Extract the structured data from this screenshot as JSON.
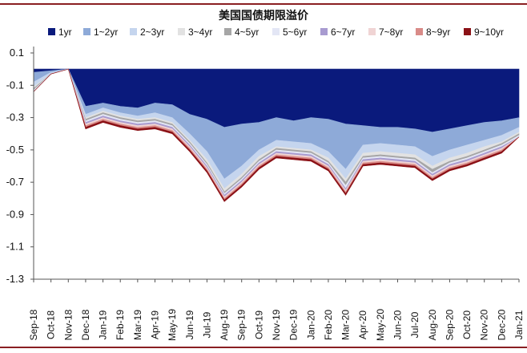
{
  "chart_data": {
    "type": "area",
    "stacked": true,
    "title": "美国国债期限溢价",
    "xlabel": "",
    "ylabel": "",
    "ylim": [
      -1.3,
      0.15
    ],
    "yticks": [
      0.1,
      -0.1,
      -0.3,
      -0.5,
      -0.7,
      -0.9,
      -1.1,
      -1.3
    ],
    "ytick_labels": [
      "0.1",
      "-0.1",
      "-0.3",
      "-0.5",
      "-0.7",
      "-0.9",
      "-1.1",
      "-1.3"
    ],
    "grid": false,
    "legend_position": "top",
    "x_labels": [
      "Sep-18",
      "Oct-18",
      "Nov-18",
      "Dec-18",
      "Jan-19",
      "Feb-19",
      "Mar-19",
      "Apr-19",
      "May-19",
      "Jun-19",
      "Jul-19",
      "Aug-19",
      "Sep-19",
      "Oct-19",
      "Nov-19",
      "Dec-19",
      "Jan-20",
      "Feb-20",
      "Mar-20",
      "Apr-20",
      "May-20",
      "Jun-20",
      "Jul-20",
      "Aug-20",
      "Sep-20",
      "Oct-20",
      "Nov-20",
      "Dec-20",
      "Jan-21"
    ],
    "x": [
      0,
      1,
      2,
      3,
      4,
      5,
      6,
      7,
      8,
      9,
      10,
      11,
      12,
      13,
      14,
      15,
      16,
      17,
      18,
      19,
      20,
      21,
      22,
      23,
      24,
      25,
      26,
      27,
      28
    ],
    "series": [
      {
        "name": "1yr",
        "color": "#0a1a7c",
        "values": [
          -0.02,
          -0.01,
          0.0,
          -0.23,
          -0.21,
          -0.23,
          -0.24,
          -0.21,
          -0.22,
          -0.28,
          -0.31,
          -0.36,
          -0.34,
          -0.33,
          -0.3,
          -0.32,
          -0.3,
          -0.31,
          -0.34,
          -0.35,
          -0.36,
          -0.36,
          -0.37,
          -0.39,
          -0.37,
          -0.35,
          -0.33,
          -0.32,
          -0.3
        ]
      },
      {
        "name": "1~2yr",
        "color": "#8eaad8",
        "values": [
          -0.06,
          -0.01,
          0.0,
          -0.05,
          -0.03,
          -0.04,
          -0.05,
          -0.06,
          -0.08,
          -0.12,
          -0.2,
          -0.32,
          -0.26,
          -0.17,
          -0.14,
          -0.13,
          -0.16,
          -0.2,
          -0.28,
          -0.12,
          -0.1,
          -0.11,
          -0.11,
          -0.15,
          -0.13,
          -0.12,
          -0.11,
          -0.09,
          -0.06
        ]
      },
      {
        "name": "2~3yr",
        "color": "#c5d5ee",
        "values": [
          -0.03,
          -0.01,
          0.0,
          -0.02,
          -0.02,
          -0.02,
          -0.02,
          -0.03,
          -0.03,
          -0.04,
          -0.05,
          -0.06,
          -0.05,
          -0.04,
          -0.04,
          -0.04,
          -0.04,
          -0.04,
          -0.06,
          -0.05,
          -0.05,
          -0.05,
          -0.05,
          -0.06,
          -0.05,
          -0.05,
          -0.04,
          -0.04,
          -0.03
        ]
      },
      {
        "name": "3~4yr",
        "color": "#e2e2e2",
        "values": [
          -0.01,
          0.0,
          0.0,
          -0.01,
          -0.01,
          -0.01,
          -0.01,
          -0.01,
          -0.01,
          -0.01,
          -0.02,
          -0.02,
          -0.02,
          -0.02,
          -0.01,
          -0.01,
          -0.01,
          -0.02,
          -0.02,
          -0.02,
          -0.02,
          -0.02,
          -0.02,
          -0.02,
          -0.02,
          -0.02,
          -0.02,
          -0.01,
          -0.01
        ]
      },
      {
        "name": "4~5yr",
        "color": "#a6a6a6",
        "values": [
          -0.01,
          0.0,
          0.0,
          -0.01,
          -0.01,
          -0.01,
          -0.01,
          -0.01,
          -0.01,
          -0.01,
          -0.01,
          -0.01,
          -0.01,
          -0.01,
          -0.01,
          -0.01,
          -0.01,
          -0.01,
          -0.02,
          -0.01,
          -0.01,
          -0.01,
          -0.01,
          -0.02,
          -0.01,
          -0.01,
          -0.01,
          -0.01,
          -0.01
        ]
      },
      {
        "name": "5~6yr",
        "color": "#e3e6f5",
        "values": [
          -0.01,
          0.0,
          0.0,
          -0.01,
          -0.01,
          -0.01,
          -0.01,
          -0.01,
          -0.01,
          -0.01,
          -0.01,
          -0.01,
          -0.01,
          -0.01,
          -0.01,
          -0.01,
          -0.01,
          -0.01,
          -0.02,
          -0.01,
          -0.01,
          -0.01,
          -0.01,
          -0.01,
          -0.01,
          -0.01,
          -0.01,
          -0.01,
          -0.01
        ]
      },
      {
        "name": "6~7yr",
        "color": "#a89bd0",
        "values": [
          0.0,
          0.0,
          0.0,
          -0.01,
          -0.01,
          -0.01,
          -0.01,
          -0.01,
          -0.01,
          -0.01,
          -0.01,
          -0.01,
          -0.01,
          -0.01,
          -0.01,
          -0.01,
          -0.01,
          -0.01,
          -0.01,
          -0.01,
          -0.01,
          -0.01,
          -0.01,
          -0.01,
          -0.01,
          -0.01,
          -0.01,
          -0.01,
          0.0
        ]
      },
      {
        "name": "7~8yr",
        "color": "#f0d4d4",
        "values": [
          0.0,
          0.0,
          0.0,
          -0.01,
          -0.01,
          -0.01,
          -0.01,
          -0.01,
          -0.01,
          -0.01,
          -0.01,
          -0.01,
          -0.01,
          -0.01,
          -0.01,
          -0.01,
          -0.01,
          -0.01,
          -0.01,
          -0.01,
          -0.01,
          -0.01,
          -0.01,
          -0.01,
          -0.01,
          -0.01,
          -0.01,
          -0.01,
          0.0
        ]
      },
      {
        "name": "8~9yr",
        "color": "#d98b88",
        "values": [
          0.0,
          0.0,
          0.0,
          -0.01,
          -0.01,
          -0.01,
          -0.01,
          -0.01,
          -0.01,
          -0.01,
          -0.01,
          -0.01,
          -0.01,
          -0.01,
          -0.01,
          -0.01,
          -0.01,
          -0.01,
          -0.01,
          -0.01,
          -0.01,
          -0.01,
          -0.01,
          -0.01,
          -0.01,
          -0.01,
          -0.01,
          -0.01,
          0.0
        ]
      },
      {
        "name": "9~10yr",
        "color": "#8b1116",
        "values": [
          0.0,
          0.0,
          0.0,
          -0.01,
          -0.01,
          -0.01,
          -0.01,
          -0.01,
          -0.01,
          -0.01,
          -0.01,
          -0.01,
          -0.01,
          -0.01,
          -0.01,
          -0.01,
          -0.01,
          -0.01,
          -0.01,
          -0.01,
          -0.01,
          -0.01,
          -0.01,
          -0.01,
          -0.01,
          -0.01,
          -0.01,
          -0.01,
          0.0
        ]
      }
    ]
  }
}
